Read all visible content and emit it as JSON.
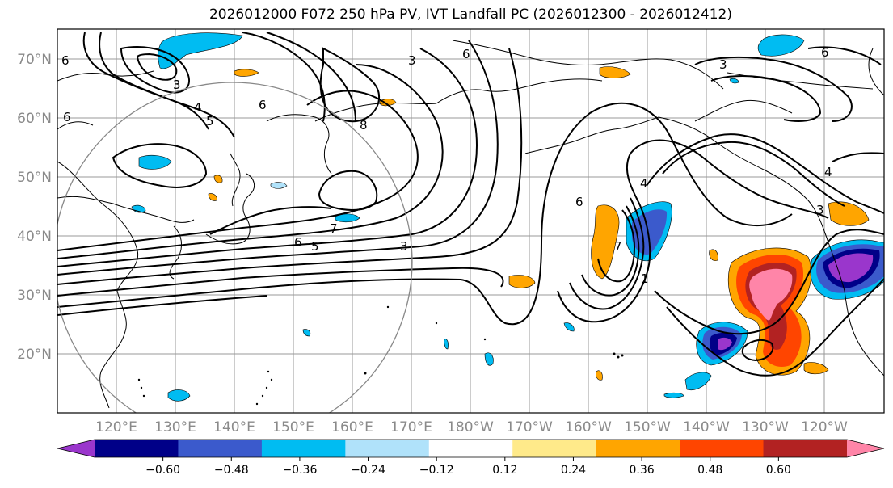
{
  "title": "2026012000 F072 250 hPa PV, IVT Landfall PC (2026012300 - 2026012412)",
  "lat_labels": [
    "70°N",
    "60°N",
    "50°N",
    "40°N",
    "30°N",
    "20°N"
  ],
  "lon_labels": [
    "120°E",
    "130°E",
    "140°E",
    "150°E",
    "160°E",
    "170°E",
    "180°W",
    "170°W",
    "160°W",
    "150°W",
    "140°W",
    "130°W",
    "120°W"
  ],
  "colorbar": {
    "colors": [
      "#9a36cc",
      "#000088",
      "#3b5acc",
      "#00bcf2",
      "#b0e2fa",
      "#ffffff",
      "#ffea8a",
      "#ffa500",
      "#ff4500",
      "#b22222",
      "#ff85a8"
    ],
    "tick_labels": [
      "−0.60",
      "−0.48",
      "−0.36",
      "−0.24",
      "−0.12",
      "0.12",
      "0.24",
      "0.36",
      "0.48",
      "0.60"
    ]
  },
  "contour_labels": [
    "6",
    "3",
    "4",
    "5",
    "6",
    "6",
    "7",
    "6",
    "5",
    "3",
    "3",
    "6",
    "3",
    "6",
    "7",
    "1",
    "4",
    "3",
    "6",
    "4",
    "8"
  ],
  "colors": {
    "grid": "#999999",
    "contour": "#000000",
    "coast": "#000000",
    "circle": "#888888"
  }
}
